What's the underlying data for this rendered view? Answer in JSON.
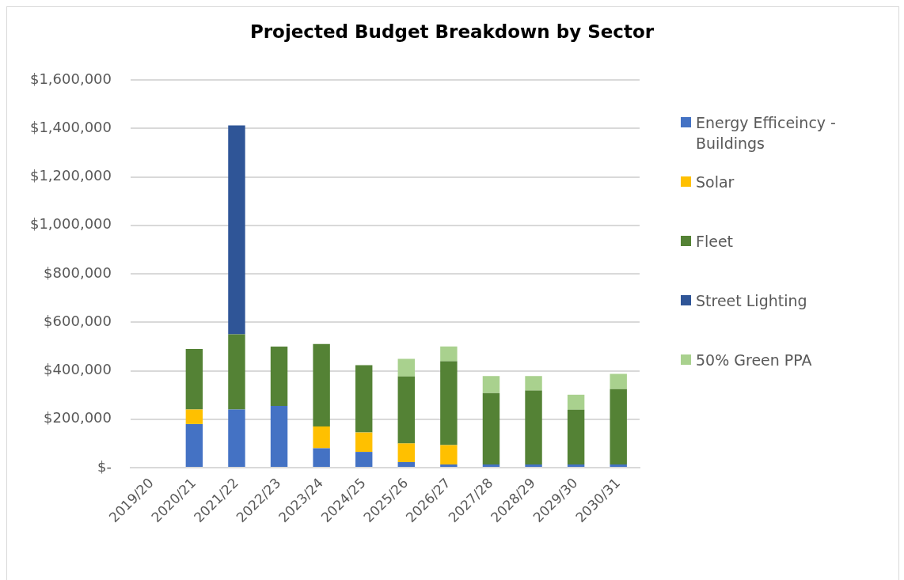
{
  "chart_data": {
    "type": "bar",
    "title": "Projected Budget Breakdown by Sector",
    "categories": [
      "2019/20",
      "2020/21",
      "2021/22",
      "2022/23",
      "2023/24",
      "2024/25",
      "2025/26",
      "2026/27",
      "2027/28",
      "2028/29",
      "2029/30",
      "2030/31"
    ],
    "series": [
      {
        "name": "Energy Efficeincy - Buildings",
        "color": "#4472c4",
        "values": [
          null,
          180000,
          240000,
          255000,
          80000,
          65000,
          23000,
          13000,
          13000,
          13000,
          13000,
          13000
        ]
      },
      {
        "name": "Solar",
        "color": "#ffc000",
        "values": [
          null,
          60000,
          null,
          null,
          90000,
          80000,
          77000,
          80000,
          null,
          null,
          null,
          null
        ]
      },
      {
        "name": "Fleet",
        "color": "#548235",
        "values": [
          null,
          250000,
          310000,
          245000,
          340000,
          278000,
          276000,
          346000,
          295000,
          305000,
          226000,
          311000
        ]
      },
      {
        "name": "Street Lighting",
        "color": "#2f5597",
        "values": [
          null,
          null,
          862000,
          null,
          null,
          null,
          null,
          null,
          null,
          null,
          null,
          null
        ]
      },
      {
        "name": "50% Green PPA",
        "color": "#a9d18e",
        "values": [
          null,
          null,
          null,
          null,
          null,
          null,
          73000,
          61000,
          70000,
          60000,
          62000,
          63000
        ]
      }
    ],
    "stacked": true,
    "ylim": [
      0,
      1600000
    ],
    "yticks": [
      {
        "value": 0,
        "label": "$-"
      },
      {
        "value": 200000,
        "label": "$200,000"
      },
      {
        "value": 400000,
        "label": "$400,000"
      },
      {
        "value": 600000,
        "label": "$600,000"
      },
      {
        "value": 800000,
        "label": "$800,000"
      },
      {
        "value": 1000000,
        "label": "$1,000,000"
      },
      {
        "value": 1200000,
        "label": "$1,200,000"
      },
      {
        "value": 1400000,
        "label": "$1,400,000"
      },
      {
        "value": 1600000,
        "label": "$1,600,000"
      }
    ],
    "grid": "y",
    "legend": "right"
  }
}
